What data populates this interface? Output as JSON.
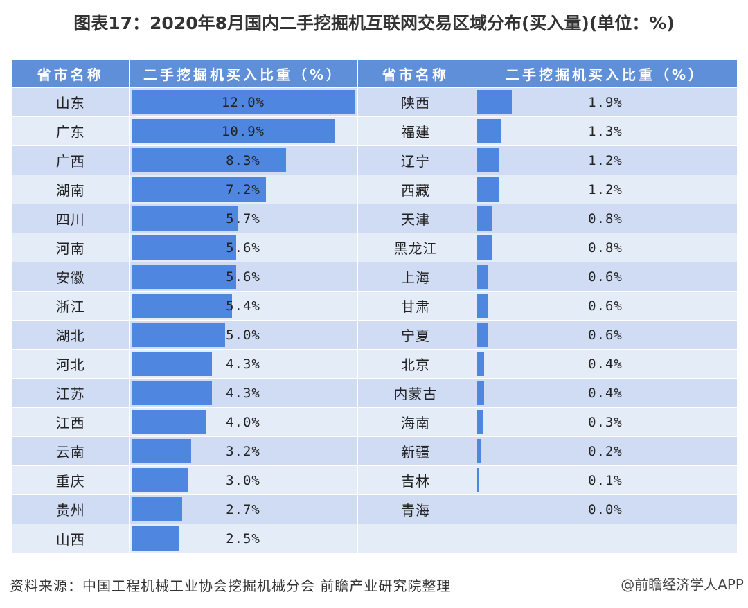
{
  "title": "图表17：2020年8月国内二手挖掘机互联网交易区域分布(买入量)(单位：%)",
  "headers": {
    "province": "省市名称",
    "share": "二手挖掘机买入比重（%）",
    "province2": "省市名称",
    "share2": "二手挖掘机买入比重（%）"
  },
  "source": "资料来源：中国工程机械工业协会挖掘机械分会 前瞻产业研究院整理",
  "watermark": "@前瞻经济学人APP",
  "colors": {
    "header": "#5f8fd9",
    "bar": "#4f86df",
    "row_odd": "#cfdcf3",
    "row_even": "#e4ecf8"
  },
  "chart_data": {
    "type": "table",
    "title": "图表17：2020年8月国内二手挖掘机互联网交易区域分布(买入量)(单位：%)",
    "unit": "%",
    "left": [
      {
        "name": "山东",
        "value": 12.0,
        "label": "12.0%"
      },
      {
        "name": "广东",
        "value": 10.9,
        "label": "10.9%"
      },
      {
        "name": "广西",
        "value": 8.3,
        "label": "8.3%"
      },
      {
        "name": "湖南",
        "value": 7.2,
        "label": "7.2%"
      },
      {
        "name": "四川",
        "value": 5.7,
        "label": "5.7%"
      },
      {
        "name": "河南",
        "value": 5.6,
        "label": "5.6%"
      },
      {
        "name": "安徽",
        "value": 5.6,
        "label": "5.6%"
      },
      {
        "name": "浙江",
        "value": 5.4,
        "label": "5.4%"
      },
      {
        "name": "湖北",
        "value": 5.0,
        "label": "5.0%"
      },
      {
        "name": "河北",
        "value": 4.3,
        "label": "4.3%"
      },
      {
        "name": "江苏",
        "value": 4.3,
        "label": "4.3%"
      },
      {
        "name": "江西",
        "value": 4.0,
        "label": "4.0%"
      },
      {
        "name": "云南",
        "value": 3.2,
        "label": "3.2%"
      },
      {
        "name": "重庆",
        "value": 3.0,
        "label": "3.0%"
      },
      {
        "name": "贵州",
        "value": 2.7,
        "label": "2.7%"
      },
      {
        "name": "山西",
        "value": 2.5,
        "label": "2.5%"
      }
    ],
    "right": [
      {
        "name": "陕西",
        "value": 1.9,
        "label": "1.9%"
      },
      {
        "name": "福建",
        "value": 1.3,
        "label": "1.3%"
      },
      {
        "name": "辽宁",
        "value": 1.2,
        "label": "1.2%"
      },
      {
        "name": "西藏",
        "value": 1.2,
        "label": "1.2%"
      },
      {
        "name": "天津",
        "value": 0.8,
        "label": "0.8%"
      },
      {
        "name": "黑龙江",
        "value": 0.8,
        "label": "0.8%"
      },
      {
        "name": "上海",
        "value": 0.6,
        "label": "0.6%"
      },
      {
        "name": "甘肃",
        "value": 0.6,
        "label": "0.6%"
      },
      {
        "name": "宁夏",
        "value": 0.6,
        "label": "0.6%"
      },
      {
        "name": "北京",
        "value": 0.4,
        "label": "0.4%"
      },
      {
        "name": "内蒙古",
        "value": 0.4,
        "label": "0.4%"
      },
      {
        "name": "海南",
        "value": 0.3,
        "label": "0.3%"
      },
      {
        "name": "新疆",
        "value": 0.2,
        "label": "0.2%"
      },
      {
        "name": "吉林",
        "value": 0.1,
        "label": "0.1%"
      },
      {
        "name": "青海",
        "value": 0.0,
        "label": "0.0%"
      }
    ],
    "max_value": 12.0
  }
}
